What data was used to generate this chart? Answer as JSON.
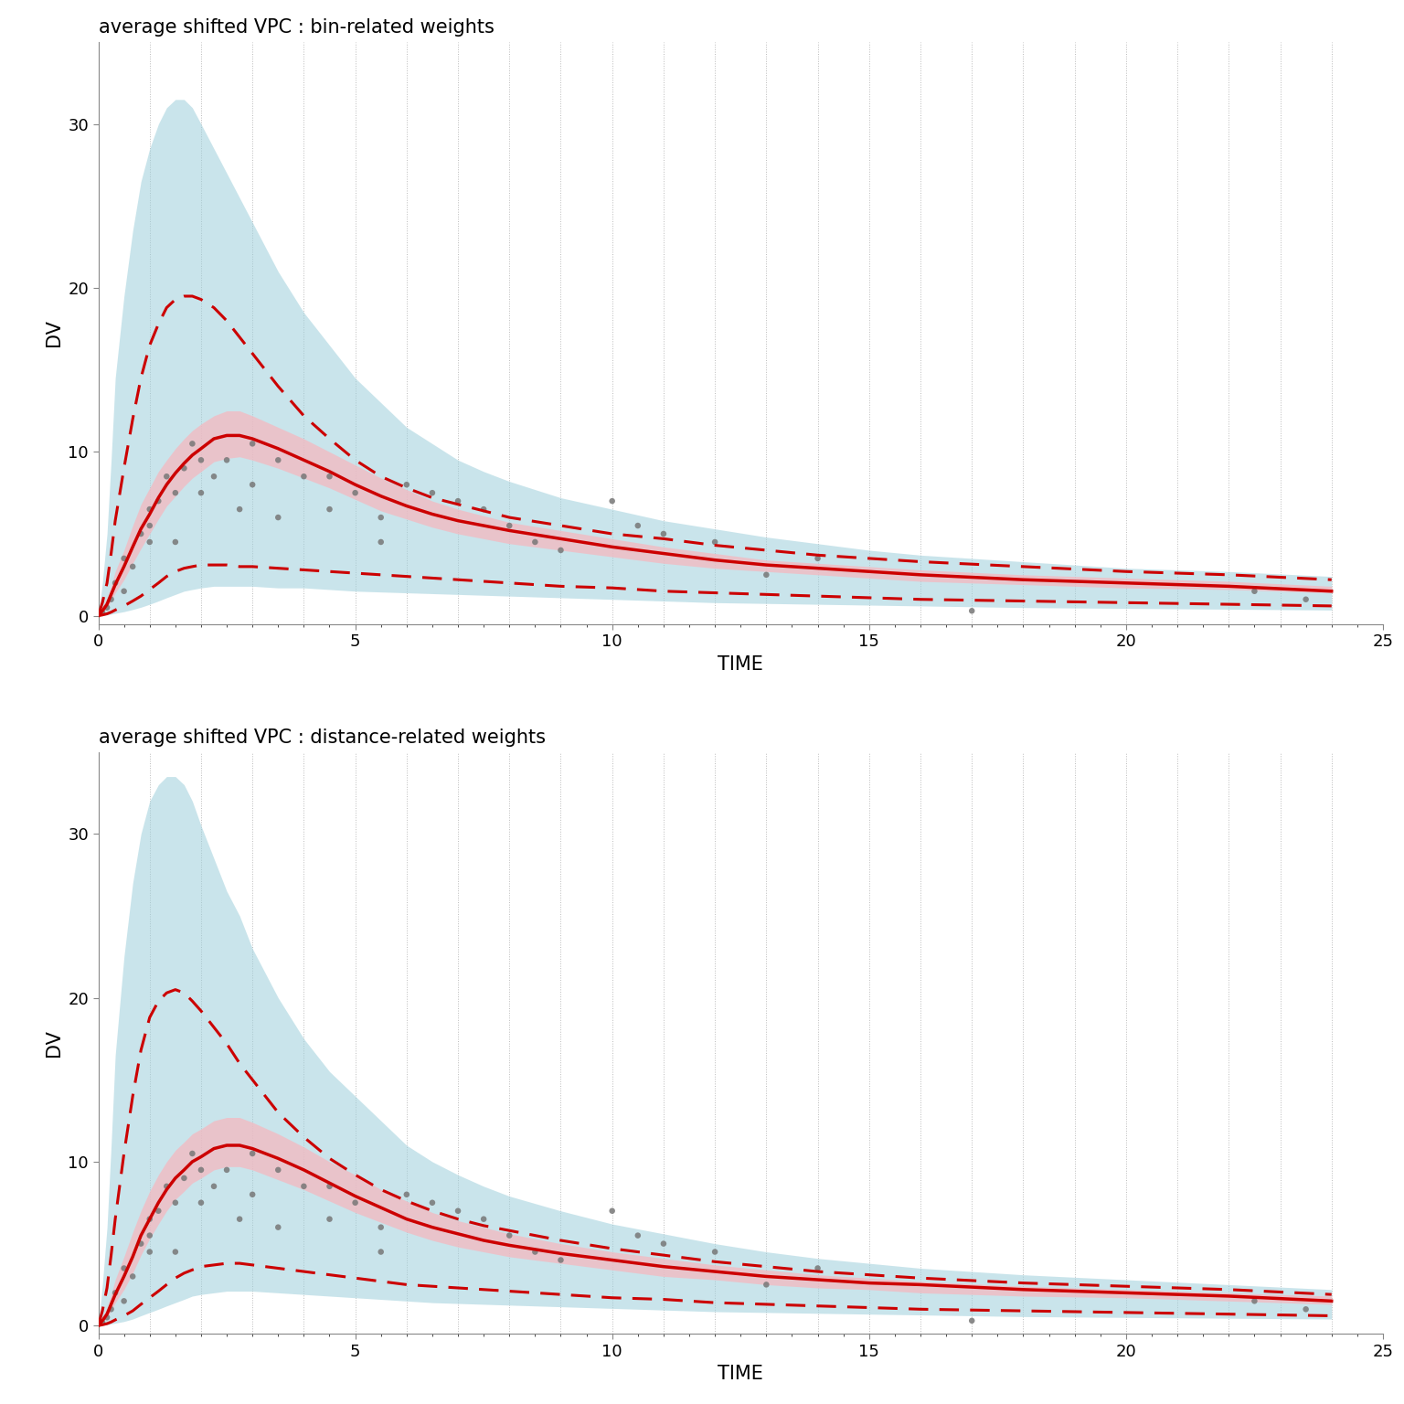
{
  "title1": "average shifted VPC : bin-related weights",
  "title2": "average shifted VPC : distance-related weights",
  "xlabel": "TIME",
  "ylabel": "DV",
  "xlim": [
    0,
    25
  ],
  "ylim": [
    -0.5,
    35
  ],
  "yticks": [
    0,
    10,
    20,
    30
  ],
  "xticks": [
    0,
    5,
    10,
    15,
    20,
    25
  ],
  "background_color": "#ffffff",
  "plot_bg_color": "#ffffff",
  "light_blue": "#9ecfdb",
  "light_pink": "#f5b8c0",
  "red_line_color": "#CC0000",
  "dot_color": "#777777",
  "grid_color": "#bbbbbb",
  "time_smooth": [
    0.0,
    0.08,
    0.17,
    0.25,
    0.33,
    0.5,
    0.67,
    0.83,
    1.0,
    1.17,
    1.33,
    1.5,
    1.67,
    1.83,
    2.0,
    2.25,
    2.5,
    2.75,
    3.0,
    3.5,
    4.0,
    4.5,
    5.0,
    5.5,
    6.0,
    6.5,
    7.0,
    7.5,
    8.0,
    9.0,
    10.0,
    11.0,
    12.0,
    13.0,
    14.0,
    15.0,
    16.0,
    18.0,
    20.0,
    22.0,
    24.0
  ],
  "p1_median": [
    0.0,
    0.3,
    0.7,
    1.3,
    1.9,
    3.0,
    4.2,
    5.3,
    6.2,
    7.2,
    8.0,
    8.7,
    9.3,
    9.8,
    10.2,
    10.8,
    11.0,
    11.0,
    10.8,
    10.2,
    9.5,
    8.8,
    8.0,
    7.3,
    6.7,
    6.2,
    5.8,
    5.5,
    5.2,
    4.7,
    4.2,
    3.8,
    3.4,
    3.1,
    2.9,
    2.7,
    2.5,
    2.2,
    2.0,
    1.8,
    1.5
  ],
  "p1_median_lo": [
    0.0,
    0.2,
    0.5,
    0.9,
    1.4,
    2.2,
    3.2,
    4.1,
    5.0,
    5.9,
    6.7,
    7.3,
    7.9,
    8.4,
    8.8,
    9.4,
    9.6,
    9.7,
    9.5,
    9.0,
    8.4,
    7.8,
    7.1,
    6.4,
    5.9,
    5.4,
    5.0,
    4.7,
    4.4,
    4.0,
    3.6,
    3.2,
    2.9,
    2.7,
    2.5,
    2.3,
    2.1,
    1.9,
    1.7,
    1.6,
    1.4
  ],
  "p1_median_hi": [
    0.0,
    0.5,
    1.1,
    1.8,
    2.7,
    4.0,
    5.5,
    6.8,
    7.8,
    8.8,
    9.5,
    10.2,
    10.8,
    11.3,
    11.7,
    12.2,
    12.5,
    12.5,
    12.2,
    11.5,
    10.8,
    10.0,
    9.2,
    8.4,
    7.7,
    7.0,
    6.5,
    6.1,
    5.7,
    5.2,
    4.7,
    4.2,
    3.8,
    3.4,
    3.2,
    3.0,
    2.8,
    2.5,
    2.3,
    2.1,
    1.8
  ],
  "p1_p10": [
    0.0,
    0.05,
    0.12,
    0.22,
    0.35,
    0.6,
    0.9,
    1.2,
    1.6,
    2.0,
    2.4,
    2.7,
    2.9,
    3.0,
    3.1,
    3.1,
    3.1,
    3.0,
    3.0,
    2.9,
    2.8,
    2.7,
    2.6,
    2.5,
    2.4,
    2.3,
    2.2,
    2.1,
    2.0,
    1.8,
    1.7,
    1.5,
    1.4,
    1.3,
    1.2,
    1.1,
    1.0,
    0.9,
    0.8,
    0.7,
    0.6
  ],
  "p1_p10_lo": [
    0.0,
    0.02,
    0.05,
    0.1,
    0.15,
    0.25,
    0.38,
    0.52,
    0.7,
    0.9,
    1.1,
    1.3,
    1.5,
    1.6,
    1.7,
    1.8,
    1.8,
    1.8,
    1.8,
    1.7,
    1.7,
    1.6,
    1.5,
    1.45,
    1.4,
    1.35,
    1.3,
    1.25,
    1.2,
    1.1,
    1.0,
    0.9,
    0.8,
    0.75,
    0.7,
    0.65,
    0.6,
    0.5,
    0.45,
    0.4,
    0.35
  ],
  "p1_p10_hi": [
    0.0,
    0.1,
    0.25,
    0.45,
    0.7,
    1.1,
    1.6,
    2.1,
    2.6,
    3.1,
    3.6,
    4.0,
    4.3,
    4.5,
    4.6,
    4.6,
    4.6,
    4.5,
    4.4,
    4.2,
    4.0,
    3.7,
    3.5,
    3.3,
    3.1,
    2.9,
    2.8,
    2.7,
    2.5,
    2.3,
    2.1,
    1.9,
    1.7,
    1.55,
    1.45,
    1.35,
    1.25,
    1.1,
    1.0,
    0.9,
    0.75
  ],
  "p1_p90": [
    0.0,
    0.8,
    2.0,
    3.8,
    5.8,
    9.0,
    12.0,
    14.5,
    16.5,
    17.8,
    18.8,
    19.3,
    19.5,
    19.5,
    19.3,
    18.8,
    18.0,
    17.0,
    16.0,
    14.0,
    12.2,
    10.8,
    9.5,
    8.5,
    7.8,
    7.2,
    6.8,
    6.4,
    6.0,
    5.5,
    5.0,
    4.7,
    4.3,
    4.0,
    3.7,
    3.5,
    3.3,
    3.0,
    2.7,
    2.5,
    2.2
  ],
  "p1_p90_lo": [
    0.0,
    0.5,
    1.3,
    2.5,
    3.8,
    6.0,
    8.5,
    11.0,
    13.0,
    14.5,
    15.5,
    16.2,
    16.5,
    16.8,
    16.8,
    16.5,
    15.8,
    14.8,
    13.8,
    12.0,
    10.5,
    9.2,
    8.0,
    7.2,
    6.7,
    6.2,
    5.8,
    5.5,
    5.2,
    4.8,
    4.4,
    4.0,
    3.7,
    3.4,
    3.2,
    3.0,
    2.8,
    2.5,
    2.3,
    2.1,
    1.8
  ],
  "p1_p90_hi": [
    0.0,
    2.0,
    5.0,
    9.5,
    14.5,
    19.5,
    23.5,
    26.5,
    28.5,
    30.0,
    31.0,
    31.5,
    31.5,
    31.0,
    30.0,
    28.5,
    27.0,
    25.5,
    24.0,
    21.0,
    18.5,
    16.5,
    14.5,
    13.0,
    11.5,
    10.5,
    9.5,
    8.8,
    8.2,
    7.2,
    6.5,
    5.8,
    5.3,
    4.8,
    4.4,
    4.0,
    3.7,
    3.3,
    2.9,
    2.7,
    2.4
  ],
  "p1_obs_x": [
    0.08,
    0.17,
    0.25,
    0.33,
    0.5,
    0.5,
    0.67,
    0.83,
    1.0,
    1.0,
    1.0,
    1.17,
    1.33,
    1.5,
    1.5,
    1.67,
    1.83,
    2.0,
    2.0,
    2.25,
    2.5,
    2.75,
    3.0,
    3.0,
    3.5,
    3.5,
    4.0,
    4.5,
    4.5,
    5.0,
    5.5,
    5.5,
    6.0,
    6.5,
    7.0,
    7.5,
    8.0,
    8.5,
    9.0,
    10.0,
    10.5,
    11.0,
    12.0,
    13.0,
    14.0,
    17.0,
    22.5,
    23.5
  ],
  "p1_obs_y": [
    0.2,
    0.5,
    1.0,
    2.0,
    1.5,
    3.5,
    3.0,
    5.0,
    6.5,
    5.5,
    4.5,
    7.0,
    8.5,
    7.5,
    4.5,
    9.0,
    10.5,
    9.5,
    7.5,
    8.5,
    9.5,
    6.5,
    10.5,
    8.0,
    9.5,
    6.0,
    8.5,
    8.5,
    6.5,
    7.5,
    6.0,
    4.5,
    8.0,
    7.5,
    7.0,
    6.5,
    5.5,
    4.5,
    4.0,
    7.0,
    5.5,
    5.0,
    4.5,
    2.5,
    3.5,
    0.3,
    1.5,
    1.0
  ],
  "p2_median": [
    0.0,
    0.3,
    0.7,
    1.3,
    1.9,
    3.0,
    4.2,
    5.5,
    6.5,
    7.5,
    8.3,
    9.0,
    9.5,
    10.0,
    10.3,
    10.8,
    11.0,
    11.0,
    10.8,
    10.2,
    9.5,
    8.7,
    7.9,
    7.2,
    6.5,
    6.0,
    5.6,
    5.2,
    4.9,
    4.4,
    4.0,
    3.6,
    3.3,
    3.0,
    2.8,
    2.6,
    2.5,
    2.2,
    2.0,
    1.8,
    1.5
  ],
  "p2_median_lo": [
    0.0,
    0.2,
    0.5,
    0.9,
    1.4,
    2.2,
    3.2,
    4.3,
    5.3,
    6.2,
    7.0,
    7.7,
    8.2,
    8.7,
    9.0,
    9.5,
    9.7,
    9.7,
    9.5,
    8.9,
    8.3,
    7.6,
    6.9,
    6.3,
    5.7,
    5.2,
    4.8,
    4.5,
    4.2,
    3.8,
    3.4,
    3.0,
    2.8,
    2.5,
    2.3,
    2.2,
    2.0,
    1.8,
    1.7,
    1.5,
    1.3
  ],
  "p2_median_hi": [
    0.0,
    0.5,
    1.1,
    1.9,
    2.8,
    4.2,
    5.7,
    7.0,
    8.2,
    9.2,
    10.0,
    10.7,
    11.2,
    11.7,
    12.0,
    12.5,
    12.7,
    12.7,
    12.4,
    11.7,
    10.9,
    10.0,
    9.2,
    8.3,
    7.6,
    6.9,
    6.4,
    6.0,
    5.6,
    5.0,
    4.5,
    4.1,
    3.7,
    3.4,
    3.1,
    2.9,
    2.7,
    2.4,
    2.2,
    2.0,
    1.8
  ],
  "p2_p10": [
    0.0,
    0.05,
    0.12,
    0.22,
    0.35,
    0.6,
    0.9,
    1.3,
    1.7,
    2.1,
    2.5,
    2.9,
    3.2,
    3.4,
    3.6,
    3.7,
    3.8,
    3.8,
    3.7,
    3.5,
    3.3,
    3.1,
    2.9,
    2.7,
    2.5,
    2.4,
    2.3,
    2.2,
    2.1,
    1.9,
    1.7,
    1.6,
    1.4,
    1.3,
    1.2,
    1.1,
    1.0,
    0.9,
    0.8,
    0.7,
    0.6
  ],
  "p2_p10_lo": [
    0.0,
    0.02,
    0.05,
    0.1,
    0.15,
    0.25,
    0.4,
    0.6,
    0.8,
    1.0,
    1.2,
    1.4,
    1.6,
    1.8,
    1.9,
    2.0,
    2.1,
    2.1,
    2.1,
    2.0,
    1.9,
    1.8,
    1.7,
    1.6,
    1.5,
    1.4,
    1.35,
    1.3,
    1.25,
    1.15,
    1.05,
    0.95,
    0.85,
    0.8,
    0.75,
    0.7,
    0.65,
    0.55,
    0.5,
    0.45,
    0.4
  ],
  "p2_p10_hi": [
    0.0,
    0.12,
    0.3,
    0.55,
    0.85,
    1.3,
    1.9,
    2.5,
    3.1,
    3.7,
    4.2,
    4.7,
    5.0,
    5.2,
    5.3,
    5.4,
    5.4,
    5.3,
    5.2,
    4.9,
    4.6,
    4.3,
    4.0,
    3.7,
    3.4,
    3.2,
    3.0,
    2.8,
    2.7,
    2.4,
    2.2,
    2.0,
    1.8,
    1.65,
    1.55,
    1.45,
    1.35,
    1.2,
    1.05,
    0.95,
    0.8
  ],
  "p2_p90": [
    0.0,
    0.9,
    2.3,
    4.3,
    6.5,
    10.5,
    14.0,
    16.8,
    18.8,
    19.8,
    20.3,
    20.5,
    20.3,
    19.8,
    19.2,
    18.2,
    17.2,
    16.0,
    15.0,
    13.0,
    11.5,
    10.2,
    9.2,
    8.3,
    7.6,
    7.0,
    6.5,
    6.1,
    5.8,
    5.2,
    4.7,
    4.3,
    3.9,
    3.6,
    3.3,
    3.1,
    2.9,
    2.6,
    2.4,
    2.2,
    1.9
  ],
  "p2_p90_lo": [
    0.0,
    0.6,
    1.5,
    2.9,
    4.4,
    7.0,
    9.5,
    12.0,
    13.8,
    15.2,
    16.2,
    16.8,
    17.0,
    17.0,
    16.8,
    16.2,
    15.5,
    14.5,
    13.5,
    11.8,
    10.5,
    9.3,
    8.3,
    7.5,
    6.8,
    6.2,
    5.8,
    5.4,
    5.1,
    4.6,
    4.1,
    3.7,
    3.4,
    3.1,
    2.9,
    2.7,
    2.5,
    2.2,
    2.0,
    1.8,
    1.6
  ],
  "p2_p90_hi": [
    0.0,
    2.5,
    6.0,
    11.0,
    16.5,
    22.5,
    27.0,
    30.0,
    32.0,
    33.0,
    33.5,
    33.5,
    33.0,
    32.0,
    30.5,
    28.5,
    26.5,
    25.0,
    23.0,
    20.0,
    17.5,
    15.5,
    14.0,
    12.5,
    11.0,
    10.0,
    9.2,
    8.5,
    7.9,
    7.0,
    6.2,
    5.6,
    5.0,
    4.5,
    4.1,
    3.8,
    3.5,
    3.1,
    2.8,
    2.5,
    2.2
  ],
  "p2_obs_x": [
    0.08,
    0.17,
    0.25,
    0.33,
    0.5,
    0.5,
    0.67,
    0.83,
    1.0,
    1.0,
    1.0,
    1.17,
    1.33,
    1.5,
    1.5,
    1.67,
    1.83,
    2.0,
    2.0,
    2.25,
    2.5,
    2.75,
    3.0,
    3.0,
    3.5,
    3.5,
    4.0,
    4.5,
    4.5,
    5.0,
    5.5,
    5.5,
    6.0,
    6.5,
    7.0,
    7.5,
    8.0,
    8.5,
    9.0,
    10.0,
    10.5,
    11.0,
    12.0,
    13.0,
    14.0,
    17.0,
    22.5,
    23.5
  ],
  "p2_obs_y": [
    0.2,
    0.5,
    1.0,
    2.0,
    1.5,
    3.5,
    3.0,
    5.0,
    6.5,
    5.5,
    4.5,
    7.0,
    8.5,
    7.5,
    4.5,
    9.0,
    10.5,
    9.5,
    7.5,
    8.5,
    9.5,
    6.5,
    10.5,
    8.0,
    9.5,
    6.0,
    8.5,
    8.5,
    6.5,
    7.5,
    6.0,
    4.5,
    8.0,
    7.5,
    7.0,
    6.5,
    5.5,
    4.5,
    4.0,
    7.0,
    5.5,
    5.0,
    4.5,
    2.5,
    3.5,
    0.3,
    1.5,
    1.0
  ],
  "vgrid_x": [
    0,
    1,
    2,
    3,
    4,
    5,
    6,
    7,
    8,
    9,
    10,
    11,
    12,
    13,
    14,
    15,
    16,
    17,
    18,
    19,
    20,
    21,
    22,
    23,
    24,
    25
  ]
}
